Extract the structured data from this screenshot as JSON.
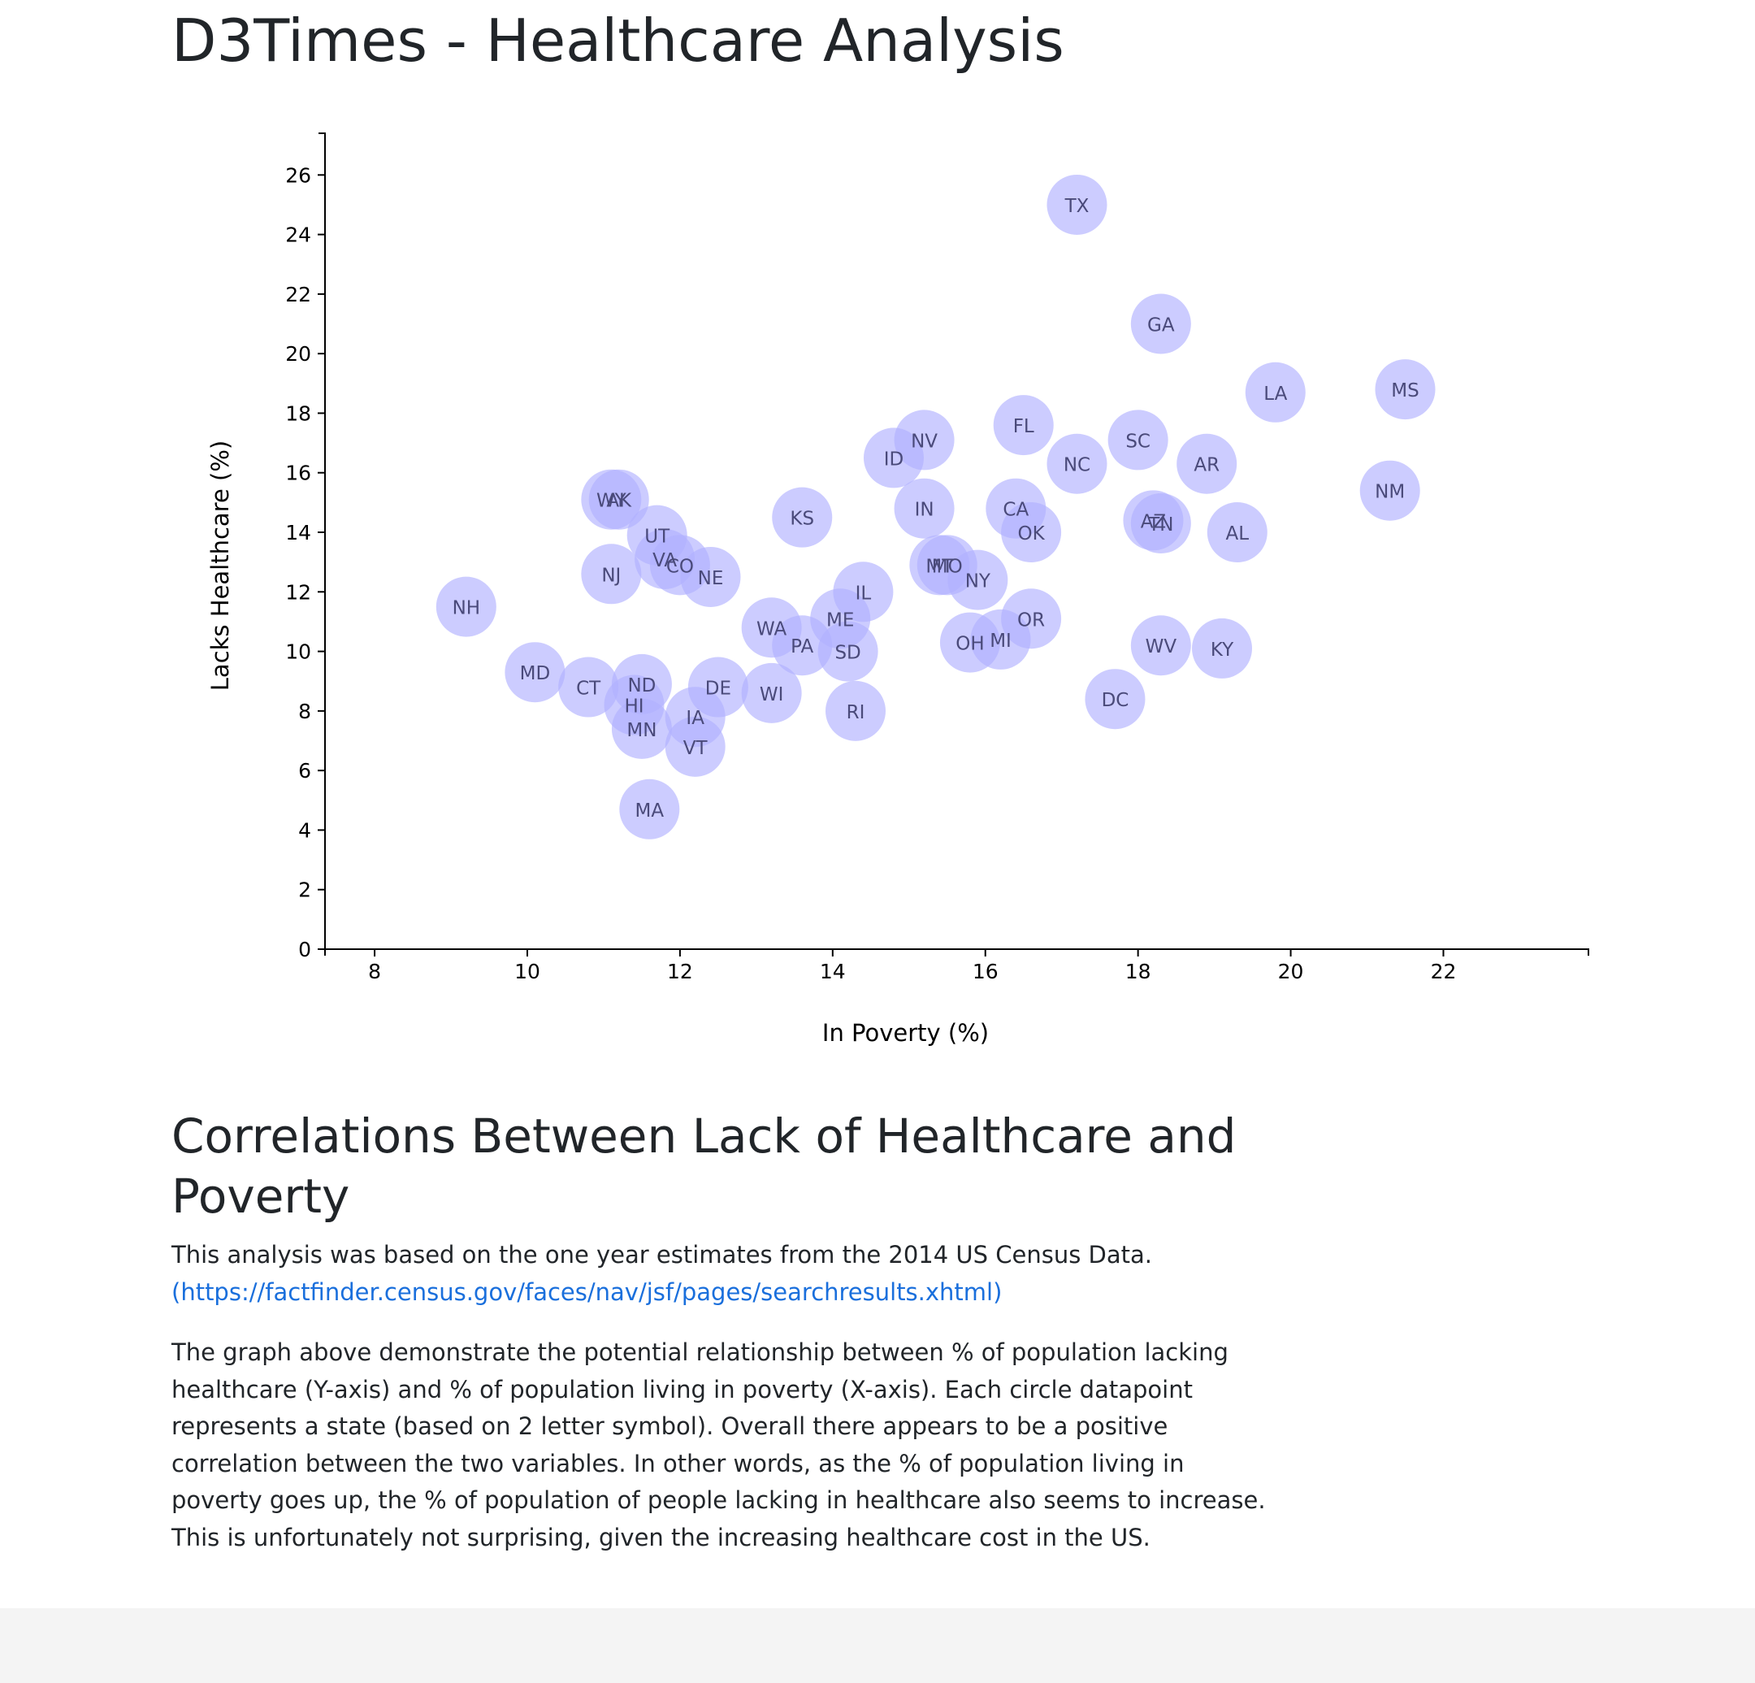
{
  "page": {
    "title": "D3Times - Healthcare Analysis"
  },
  "article": {
    "heading": "Correlations Between Lack of Healthcare and Poverty",
    "source_text": "This analysis was based on the one year estimates from the 2014 US Census Data.",
    "source_link": "(https://factfinder.census.gov/faces/nav/jsf/pages/searchresults.xhtml)",
    "description": "The graph above demonstrate the potential relationship between % of population lacking healthcare (Y-axis) and % of population living in poverty (X-axis). Each circle datapoint represents a state (based on 2 letter symbol). Overall there appears to be a positive correlation between the two variables. In other words, as the % of population living in poverty goes up, the % of population of people lacking in healthcare also seems to increase. This is unfortunately not surprising, given the increasing healthcare cost in the US."
  },
  "colors": {
    "marker_fill": "#b0b0ff",
    "marker_opacity": "0.65",
    "marker_label": "#4a4a7a",
    "link": "#1a6fdc"
  },
  "chart_data": {
    "type": "scatter",
    "title": "",
    "xlabel": "In Poverty (%)",
    "ylabel": "Lacks Healthcare (%)",
    "xlim": [
      7.35,
      23.9
    ],
    "ylim": [
      0,
      27.4
    ],
    "xticks": [
      8,
      10,
      12,
      14,
      16,
      18,
      20,
      22
    ],
    "yticks": [
      0,
      2,
      4,
      6,
      8,
      10,
      12,
      14,
      16,
      18,
      20,
      22,
      24,
      26
    ],
    "grid": false,
    "legend": "none",
    "points": [
      {
        "label": "TX",
        "x": 17.2,
        "y": 25.0
      },
      {
        "label": "GA",
        "x": 18.3,
        "y": 21.0
      },
      {
        "label": "LA",
        "x": 19.8,
        "y": 18.7
      },
      {
        "label": "MS",
        "x": 21.5,
        "y": 18.8
      },
      {
        "label": "FL",
        "x": 16.5,
        "y": 17.6
      },
      {
        "label": "NV",
        "x": 15.2,
        "y": 17.1
      },
      {
        "label": "SC",
        "x": 18.0,
        "y": 17.1
      },
      {
        "label": "ID",
        "x": 14.8,
        "y": 16.5
      },
      {
        "label": "NC",
        "x": 17.2,
        "y": 16.3
      },
      {
        "label": "AR",
        "x": 18.9,
        "y": 16.3
      },
      {
        "label": "NM",
        "x": 21.3,
        "y": 15.4
      },
      {
        "label": "WY",
        "x": 11.1,
        "y": 15.1
      },
      {
        "label": "AK",
        "x": 11.2,
        "y": 15.1
      },
      {
        "label": "IN",
        "x": 15.2,
        "y": 14.8
      },
      {
        "label": "CA",
        "x": 16.4,
        "y": 14.8
      },
      {
        "label": "KS",
        "x": 13.6,
        "y": 14.5
      },
      {
        "label": "AZ",
        "x": 18.2,
        "y": 14.4
      },
      {
        "label": "TN",
        "x": 18.3,
        "y": 14.3
      },
      {
        "label": "UT",
        "x": 11.7,
        "y": 13.9
      },
      {
        "label": "OK",
        "x": 16.6,
        "y": 14.0
      },
      {
        "label": "AL",
        "x": 19.3,
        "y": 14.0
      },
      {
        "label": "VA",
        "x": 11.8,
        "y": 13.1
      },
      {
        "label": "CO",
        "x": 12.0,
        "y": 12.9
      },
      {
        "label": "MT",
        "x": 15.4,
        "y": 12.9
      },
      {
        "label": "MO",
        "x": 15.5,
        "y": 12.9
      },
      {
        "label": "NE",
        "x": 12.4,
        "y": 12.5
      },
      {
        "label": "NJ",
        "x": 11.1,
        "y": 12.6
      },
      {
        "label": "NY",
        "x": 15.9,
        "y": 12.4
      },
      {
        "label": "IL",
        "x": 14.4,
        "y": 12.0
      },
      {
        "label": "NH",
        "x": 9.2,
        "y": 11.5
      },
      {
        "label": "WA",
        "x": 13.2,
        "y": 10.8
      },
      {
        "label": "ME",
        "x": 14.1,
        "y": 11.1
      },
      {
        "label": "OR",
        "x": 16.6,
        "y": 11.1
      },
      {
        "label": "PA",
        "x": 13.6,
        "y": 10.2
      },
      {
        "label": "SD",
        "x": 14.2,
        "y": 10.0
      },
      {
        "label": "OH",
        "x": 15.8,
        "y": 10.3
      },
      {
        "label": "MI",
        "x": 16.2,
        "y": 10.4
      },
      {
        "label": "WV",
        "x": 18.3,
        "y": 10.2
      },
      {
        "label": "KY",
        "x": 19.1,
        "y": 10.1
      },
      {
        "label": "MD",
        "x": 10.1,
        "y": 9.3
      },
      {
        "label": "CT",
        "x": 10.8,
        "y": 8.8
      },
      {
        "label": "ND",
        "x": 11.5,
        "y": 8.9
      },
      {
        "label": "DE",
        "x": 12.5,
        "y": 8.8
      },
      {
        "label": "WI",
        "x": 13.2,
        "y": 8.6
      },
      {
        "label": "HI",
        "x": 11.4,
        "y": 8.2
      },
      {
        "label": "RI",
        "x": 14.3,
        "y": 8.0
      },
      {
        "label": "DC",
        "x": 17.7,
        "y": 8.4
      },
      {
        "label": "IA",
        "x": 12.2,
        "y": 7.8
      },
      {
        "label": "MN",
        "x": 11.5,
        "y": 7.4
      },
      {
        "label": "VT",
        "x": 12.2,
        "y": 6.8
      },
      {
        "label": "MA",
        "x": 11.6,
        "y": 4.7
      }
    ]
  }
}
